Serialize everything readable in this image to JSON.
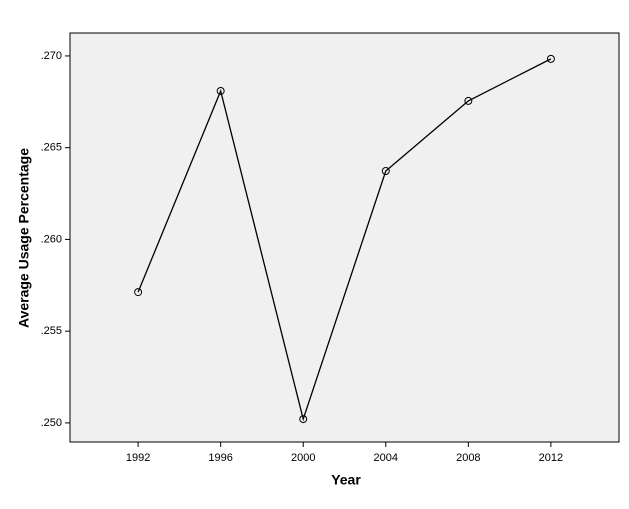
{
  "chart_data": {
    "type": "line",
    "x_label": "Year",
    "y_label": "Average Usage Percentage",
    "x": [
      1992,
      1996,
      2000,
      2004,
      2008,
      2012
    ],
    "series": [
      {
        "color": "#000000",
        "values": [
          0.25713,
          0.26809,
          0.25021,
          0.26373,
          0.26755,
          0.26984
        ]
      }
    ],
    "xlim": [
      1988.7,
      2015.3
    ],
    "xticks": [
      1992,
      1996,
      2000,
      2004,
      2008,
      2012
    ],
    "ylim": [
      0.24896,
      0.27125
    ],
    "yticks": [
      {
        "value": 0.25,
        "label": ".250"
      },
      {
        "value": 0.255,
        "label": ".255"
      },
      {
        "value": 0.26,
        "label": ".260"
      },
      {
        "value": 0.265,
        "label": ".265"
      },
      {
        "value": 0.27,
        "label": ".270"
      }
    ],
    "plot_background": "#f0f0f0"
  }
}
